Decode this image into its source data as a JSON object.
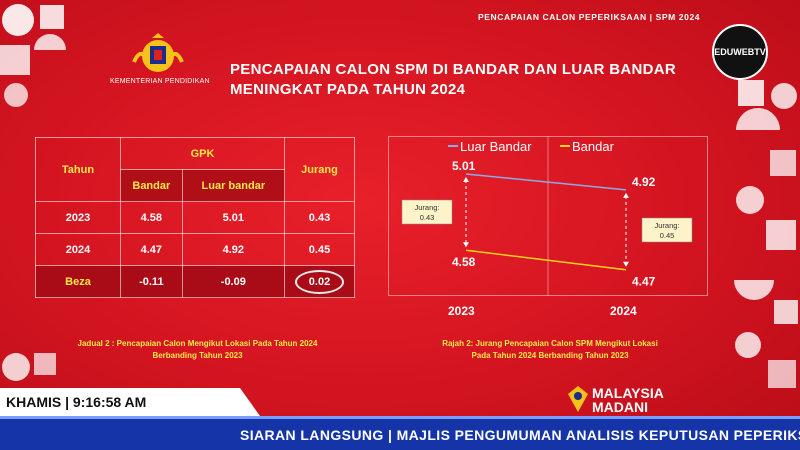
{
  "banner": "PENCAPAIAN CALON PEPERIKSAAN | SPM 2024",
  "ministry": "KEMENTERIAN PENDIDIKAN",
  "channel_logo": "EDUWEBTV",
  "title_line1": "PENCAPAIAN CALON SPM DI BANDAR DAN LUAR BANDAR",
  "title_line2": "MENINGKAT PADA TAHUN 2024",
  "table": {
    "col_tahun": "Tahun",
    "col_gpk": "GPK",
    "col_jurang": "Jurang",
    "col_bandar": "Bandar",
    "col_luar": "Luar bandar",
    "rows": [
      {
        "tahun": "2023",
        "bandar": "4.58",
        "luar": "5.01",
        "jurang": "0.43"
      },
      {
        "tahun": "2024",
        "bandar": "4.47",
        "luar": "4.92",
        "jurang": "0.45"
      },
      {
        "tahun": "Beza",
        "bandar": "-0.11",
        "luar": "-0.09",
        "jurang": "0.02"
      }
    ],
    "caption_line1": "Jadual 2 : Pencapaian Calon Mengikut Lokasi Pada Tahun 2024",
    "caption_line2": "Berbanding Tahun 2023"
  },
  "chart_data": {
    "type": "line",
    "categories": [
      "2023",
      "2024"
    ],
    "series": [
      {
        "name": "Luar Bandar",
        "values": [
          5.01,
          4.92
        ],
        "color": "#8fa8e8"
      },
      {
        "name": "Bandar",
        "values": [
          4.58,
          4.47
        ],
        "color": "#ffd21a"
      }
    ],
    "annotations": [
      {
        "text_l1": "Jurang:",
        "text_l2": "0.43",
        "at": "2023"
      },
      {
        "text_l1": "Jurang:",
        "text_l2": "0.45",
        "at": "2024"
      }
    ],
    "ylim": [
      4.35,
      5.1
    ],
    "legend": "top",
    "caption_line1": "Rajah 2: Jurang Pencapaian Calon SPM Mengikut Lokasi",
    "caption_line2": "Pada Tahun 2024 Berbanding Tahun 2023"
  },
  "clock": "KHAMIS | 9:16:58 AM",
  "ticker": "SIARAN LANGSUNG | MAJLIS PENGUMUMAN ANALISIS KEPUTUSAN PEPERIKSAAN",
  "brand_line1": "MALAYSIA",
  "brand_line2": "MADANI"
}
